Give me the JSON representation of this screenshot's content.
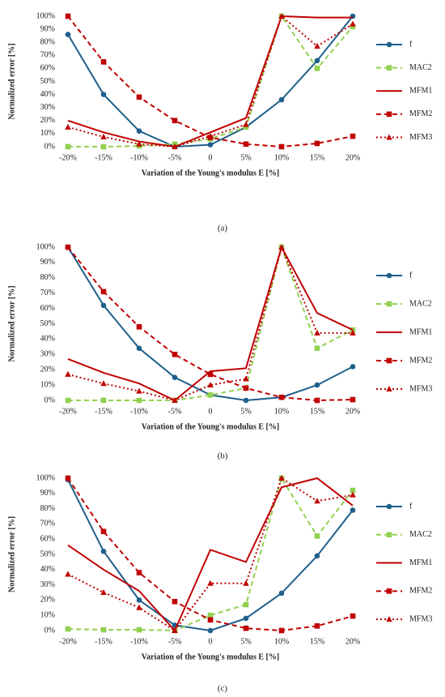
{
  "chart_data": [
    {
      "type": "line",
      "caption": "(a)",
      "y_label": "Normalized error [%]",
      "x_label": "Variation of the Young's modulus E [%]",
      "categories": [
        "-20%",
        "-15%",
        "-10%",
        "-5%",
        "0",
        "5%",
        "10%",
        "15%",
        "20%"
      ],
      "ylim": [
        0,
        100
      ],
      "yticks": [
        {
          "value": 0,
          "label": "0%"
        },
        {
          "value": 10,
          "label": "10%"
        },
        {
          "value": 20,
          "label": "20%"
        },
        {
          "value": 30,
          "label": "30%"
        },
        {
          "value": 40,
          "label": "40%"
        },
        {
          "value": 50,
          "label": "50%"
        },
        {
          "value": 60,
          "label": "60%"
        },
        {
          "value": 70,
          "label": "70%"
        },
        {
          "value": 80,
          "label": "80%"
        },
        {
          "value": 90,
          "label": "90%"
        },
        {
          "value": 100,
          "label": "100%"
        }
      ],
      "series": [
        {
          "name": "f",
          "color": "#1f5f8b",
          "dash": "solid",
          "marker": "circle",
          "values": [
            86,
            40,
            12,
            0,
            1.5,
            15,
            36,
            66,
            100
          ]
        },
        {
          "name": "MAC2",
          "color": "#92d050",
          "dash": "dashed",
          "marker": "square",
          "values": [
            0,
            0,
            0.5,
            2,
            6,
            15,
            100,
            60,
            92
          ]
        },
        {
          "name": "MFM1",
          "color": "#c00000",
          "dash": "solid",
          "marker": "none",
          "values": [
            20,
            11,
            4,
            0,
            11,
            22,
            100,
            99,
            99
          ]
        },
        {
          "name": "MFM2",
          "color": "#c00000",
          "dash": "dashed",
          "marker": "square",
          "values": [
            100,
            65,
            38,
            20,
            7,
            2,
            0,
            2.5,
            8
          ]
        },
        {
          "name": "MFM3",
          "color": "#c00000",
          "dash": "dotted",
          "marker": "triangle",
          "values": [
            15,
            7.5,
            2,
            0,
            8,
            17,
            100,
            77,
            94
          ]
        }
      ]
    },
    {
      "type": "line",
      "caption": "(b)",
      "y_label": "Normalized error [%]",
      "x_label": "Variation of the Young's modulus E [%]",
      "categories": [
        "-20%",
        "-15%",
        "-10%",
        "-5%",
        "0",
        "5%",
        "10%",
        "15%",
        "20%"
      ],
      "ylim": [
        0,
        100
      ],
      "yticks": [
        {
          "value": 0,
          "label": "0%"
        },
        {
          "value": 10,
          "label": "10%"
        },
        {
          "value": 20,
          "label": "20%"
        },
        {
          "value": 30,
          "label": "30%"
        },
        {
          "value": 40,
          "label": "40%"
        },
        {
          "value": 50,
          "label": "50%"
        },
        {
          "value": 60,
          "label": "60%"
        },
        {
          "value": 70,
          "label": "70%"
        },
        {
          "value": 80,
          "label": "80%"
        },
        {
          "value": 90,
          "label": "90%"
        },
        {
          "value": 100,
          "label": "100%"
        }
      ],
      "series": [
        {
          "name": "f",
          "color": "#1f5f8b",
          "dash": "solid",
          "marker": "circle",
          "values": [
            100,
            62,
            34,
            15,
            3.5,
            0,
            2,
            10,
            22
          ]
        },
        {
          "name": "MAC2",
          "color": "#92d050",
          "dash": "dashed",
          "marker": "square",
          "values": [
            0,
            0,
            0,
            0,
            3.5,
            8,
            100,
            34,
            46
          ]
        },
        {
          "name": "MFM1",
          "color": "#c00000",
          "dash": "solid",
          "marker": "none",
          "values": [
            27,
            18,
            11,
            0,
            19,
            21,
            100,
            57,
            46
          ]
        },
        {
          "name": "MFM2",
          "color": "#c00000",
          "dash": "dashed",
          "marker": "square",
          "values": [
            100,
            71,
            48,
            30,
            17,
            8,
            2,
            0,
            0.5
          ]
        },
        {
          "name": "MFM3",
          "color": "#c00000",
          "dash": "dotted",
          "marker": "triangle",
          "values": [
            17,
            11,
            6,
            0,
            10,
            14,
            100,
            44,
            44
          ]
        }
      ]
    },
    {
      "type": "line",
      "caption": "(c)",
      "y_label": "Normalized error [%]",
      "x_label": "Variation of the Young's modulus E [%]",
      "categories": [
        "-20%",
        "-15%",
        "-10%",
        "-5%",
        "0",
        "5%",
        "10%",
        "15%",
        "20%"
      ],
      "ylim": [
        0,
        100
      ],
      "yticks": [
        {
          "value": 0,
          "label": "0%"
        },
        {
          "value": 10,
          "label": "10%"
        },
        {
          "value": 20,
          "label": "20%"
        },
        {
          "value": 30,
          "label": "30%"
        },
        {
          "value": 40,
          "label": "40%"
        },
        {
          "value": 50,
          "label": "50%"
        },
        {
          "value": 60,
          "label": "60%"
        },
        {
          "value": 70,
          "label": "70%"
        },
        {
          "value": 80,
          "label": "80%"
        },
        {
          "value": 90,
          "label": "90%"
        },
        {
          "value": 100,
          "label": "100%"
        }
      ],
      "series": [
        {
          "name": "f",
          "color": "#1f5f8b",
          "dash": "solid",
          "marker": "circle",
          "values": [
            99,
            52,
            20,
            3.5,
            0,
            8,
            24.5,
            49,
            79
          ]
        },
        {
          "name": "MAC2",
          "color": "#92d050",
          "dash": "dashed",
          "marker": "square",
          "values": [
            1,
            0.5,
            0.5,
            0,
            10,
            17,
            100,
            62,
            92
          ]
        },
        {
          "name": "MFM1",
          "color": "#c00000",
          "dash": "solid",
          "marker": "none",
          "values": [
            56,
            40,
            26,
            0,
            53,
            45,
            94,
            100,
            82
          ]
        },
        {
          "name": "MFM2",
          "color": "#c00000",
          "dash": "dashed",
          "marker": "square",
          "values": [
            100,
            65,
            38,
            19,
            7,
            1.5,
            0,
            3,
            9.5
          ]
        },
        {
          "name": "MFM3",
          "color": "#c00000",
          "dash": "dotted",
          "marker": "triangle",
          "values": [
            37,
            25,
            15,
            0,
            31,
            31,
            100,
            85,
            89
          ]
        }
      ]
    }
  ]
}
